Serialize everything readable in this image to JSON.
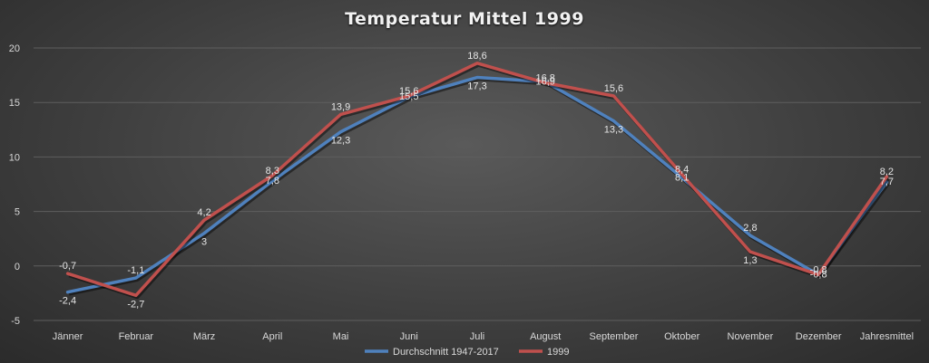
{
  "chart_data": {
    "type": "line",
    "title": "Temperatur Mittel 1999",
    "categories": [
      "Jänner",
      "Februar",
      "März",
      "April",
      "Mai",
      "Juni",
      "Juli",
      "August",
      "September",
      "Oktober",
      "November",
      "Dezember",
      "Jahresmittel"
    ],
    "ylim": [
      -5,
      20
    ],
    "yticks": [
      -5,
      0,
      5,
      10,
      15,
      20
    ],
    "grid": true,
    "legend": "bottom",
    "series": [
      {
        "name": "Durchschnitt 1947-2017",
        "color": "#4f81bd",
        "values": [
          -2.4,
          -1.1,
          3,
          7.8,
          12.3,
          15.5,
          17.3,
          16.9,
          13.3,
          8.1,
          2.8,
          -0.8,
          7.7
        ],
        "labels": [
          "-2,4",
          "-1,1",
          "3",
          "7,8",
          "12,3",
          "15,5",
          "17,3",
          "16,9",
          "13,3",
          "8,1",
          "2,8",
          "-0,8",
          "7,7"
        ]
      },
      {
        "name": "1999",
        "color": "#c0504d",
        "values": [
          -0.7,
          -2.7,
          4.2,
          8.3,
          13.9,
          15.6,
          18.6,
          16.8,
          15.6,
          8.4,
          1.3,
          -0.8,
          8.2
        ],
        "labels": [
          "-0,7",
          "-2,7",
          "4,2",
          "8,3",
          "13,9",
          "15,6",
          "18,6",
          "16,8",
          "15,6",
          "8,4",
          "1,3",
          "-0,8",
          "8,2"
        ]
      }
    ]
  }
}
